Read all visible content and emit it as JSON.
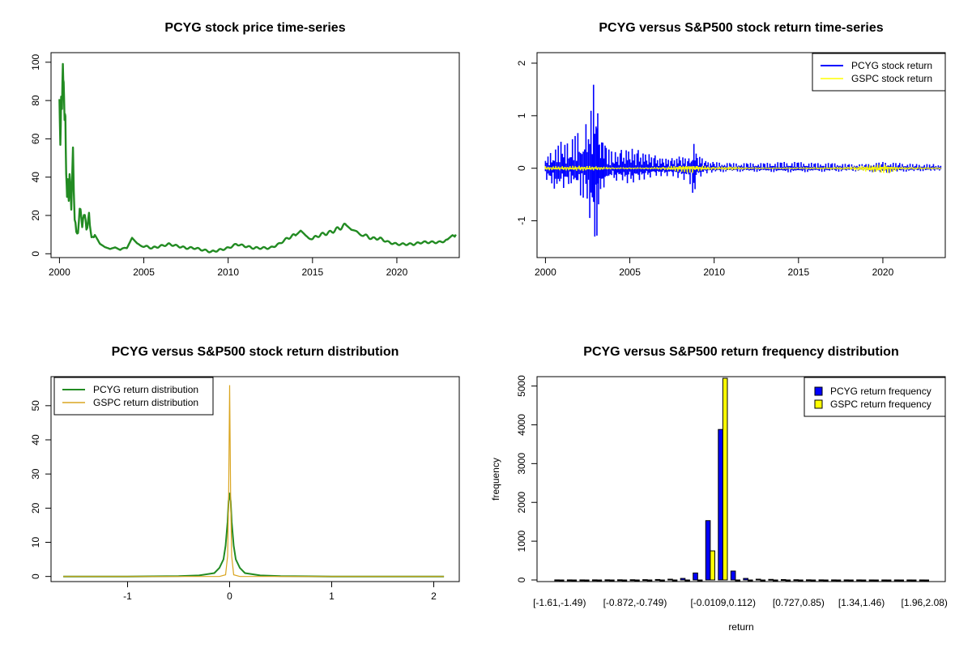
{
  "chart_data": [
    {
      "id": "p1",
      "type": "line",
      "title": "PCYG stock price time-series",
      "xlim": [
        1999.5,
        2023.7
      ],
      "ylim": [
        -2,
        105
      ],
      "x_ticks": [
        2000,
        2005,
        2010,
        2015,
        2020
      ],
      "y_ticks": [
        0,
        20,
        40,
        60,
        80,
        100
      ],
      "color": "#228B22",
      "series": [
        {
          "x": [
            2000.0,
            2000.05,
            2000.1,
            2000.15,
            2000.2,
            2000.25,
            2000.3,
            2000.35,
            2000.4,
            2000.45,
            2000.5,
            2000.55,
            2000.6,
            2000.7,
            2000.8,
            2000.9,
            2001.0,
            2001.1,
            2001.2,
            2001.35,
            2001.5,
            2001.6,
            2001.75,
            2001.9,
            2002.1,
            2002.4,
            2002.7,
            2003.0,
            2003.3,
            2003.6,
            2004.0,
            2004.3,
            2004.6,
            2005.0,
            2005.5,
            2006.0,
            2006.5,
            2007.0,
            2007.5,
            2008.0,
            2008.5,
            2009.0,
            2009.5,
            2010.0,
            2010.5,
            2011.0,
            2011.5,
            2012.0,
            2012.5,
            2013.0,
            2013.5,
            2014.0,
            2014.3,
            2014.6,
            2015.0,
            2015.5,
            2016.0,
            2016.5,
            2017.0,
            2017.3,
            2017.6,
            2018.0,
            2018.5,
            2019.0,
            2019.5,
            2020.0,
            2020.5,
            2021.0,
            2021.5,
            2022.0,
            2022.5,
            2023.0,
            2023.3,
            2023.5
          ],
          "y": [
            75,
            60,
            85,
            70,
            102,
            95,
            65,
            72,
            45,
            28,
            38,
            30,
            40,
            25,
            52,
            18,
            12,
            10,
            25,
            15,
            22,
            12,
            20,
            8,
            10,
            5,
            3,
            2,
            3,
            2,
            3,
            8,
            5,
            4,
            3,
            4,
            5,
            4,
            3,
            3,
            2,
            1,
            2,
            3,
            5,
            4,
            3,
            3,
            3,
            5,
            8,
            10,
            12,
            9,
            8,
            10,
            11,
            13,
            15,
            12,
            11,
            10,
            8,
            8,
            6,
            5,
            5,
            5,
            6,
            6,
            6,
            7,
            9,
            10
          ]
        }
      ]
    },
    {
      "id": "p2",
      "type": "line",
      "title": "PCYG versus S&P500 stock return time-series",
      "xlim": [
        1999.5,
        2023.7
      ],
      "ylim": [
        -1.7,
        2.2
      ],
      "x_ticks": [
        2000,
        2005,
        2010,
        2015,
        2020
      ],
      "y_ticks": [
        -1,
        0,
        1,
        2
      ],
      "legend": {
        "position": "top-right",
        "entries": [
          {
            "label": "PCYG stock return",
            "color": "#0000FF"
          },
          {
            "label": "GSPC stock return",
            "color": "#FFFF00"
          }
        ]
      },
      "series": [
        {
          "name": "PCYG stock return",
          "color": "#0000FF",
          "x": [
            2000.0,
            2000.3,
            2000.6,
            2001.0,
            2001.3,
            2001.6,
            2002.0,
            2002.4,
            2002.7,
            2003.0,
            2003.1,
            2003.2,
            2003.4,
            2003.6,
            2004.0,
            2004.5,
            2005.0,
            2005.5,
            2006.0,
            2006.5,
            2007.0,
            2007.5,
            2008.0,
            2008.5,
            2008.8,
            2009.0,
            2009.5,
            2010.0,
            2011.0,
            2012.0,
            2013.0,
            2014.0,
            2015.0,
            2016.0,
            2017.0,
            2018.0,
            2019.0,
            2020.0,
            2021.0,
            2022.0,
            2023.0,
            2023.5
          ],
          "hi": [
            0.25,
            0.3,
            0.4,
            0.55,
            0.5,
            0.6,
            0.7,
            0.85,
            1.3,
            2.05,
            1.8,
            0.6,
            0.5,
            0.4,
            0.3,
            0.35,
            0.4,
            0.35,
            0.3,
            0.25,
            0.2,
            0.2,
            0.25,
            0.2,
            0.5,
            0.3,
            0.15,
            0.12,
            0.1,
            0.1,
            0.1,
            0.12,
            0.12,
            0.1,
            0.1,
            0.08,
            0.08,
            0.12,
            0.1,
            0.08,
            0.08,
            0.05
          ],
          "lo": [
            -0.2,
            -0.3,
            -0.45,
            -0.4,
            -0.35,
            -0.3,
            -0.5,
            -0.6,
            -1.1,
            -1.6,
            -1.0,
            -0.5,
            -0.4,
            -0.3,
            -0.25,
            -0.25,
            -0.3,
            -0.25,
            -0.2,
            -0.15,
            -0.15,
            -0.15,
            -0.2,
            -0.25,
            -0.6,
            -0.2,
            -0.1,
            -0.08,
            -0.07,
            -0.07,
            -0.07,
            -0.08,
            -0.08,
            -0.07,
            -0.07,
            -0.06,
            -0.06,
            -0.1,
            -0.07,
            -0.06,
            -0.05,
            -0.04
          ]
        },
        {
          "name": "GSPC stock return",
          "color": "#FFFF00",
          "x": [
            2000.0,
            2001.0,
            2002.0,
            2003.0,
            2004.0,
            2005.0,
            2006.0,
            2007.0,
            2008.0,
            2008.8,
            2009.0,
            2010.0,
            2011.0,
            2012.0,
            2015.0,
            2018.0,
            2020.2,
            2021.0,
            2023.5
          ],
          "hi": [
            0.04,
            0.04,
            0.05,
            0.04,
            0.02,
            0.02,
            0.02,
            0.03,
            0.06,
            0.1,
            0.06,
            0.03,
            0.04,
            0.02,
            0.02,
            0.03,
            0.08,
            0.03,
            0.02
          ],
          "lo": [
            -0.04,
            -0.04,
            -0.05,
            -0.04,
            -0.02,
            -0.02,
            -0.02,
            -0.03,
            -0.07,
            -0.09,
            -0.06,
            -0.03,
            -0.04,
            -0.02,
            -0.02,
            -0.03,
            -0.1,
            -0.03,
            -0.02
          ]
        }
      ]
    },
    {
      "id": "p3",
      "type": "line",
      "title": "PCYG versus S&P500 stock return distribution",
      "xlim": [
        -1.75,
        2.25
      ],
      "ylim": [
        -1.5,
        58.5
      ],
      "x_ticks": [
        -1,
        0,
        1,
        2
      ],
      "y_ticks": [
        0,
        10,
        20,
        30,
        40,
        50
      ],
      "legend": {
        "position": "top-left",
        "entries": [
          {
            "label": "PCYG return distribution",
            "color": "#228B22"
          },
          {
            "label": "GSPC return distribution",
            "color": "#DAA520"
          }
        ]
      },
      "series": [
        {
          "name": "PCYG return distribution",
          "color": "#228B22",
          "x": [
            -1.63,
            -1.0,
            -0.5,
            -0.3,
            -0.15,
            -0.1,
            -0.06,
            -0.04,
            -0.02,
            -0.01,
            0.0,
            0.01,
            0.02,
            0.04,
            0.06,
            0.1,
            0.15,
            0.3,
            0.5,
            1.0,
            2.1
          ],
          "y": [
            0,
            0,
            0.1,
            0.3,
            1.0,
            2.5,
            5,
            9,
            16,
            22,
            24.5,
            22,
            16,
            9,
            5,
            2.5,
            1.0,
            0.3,
            0.1,
            0,
            0
          ]
        },
        {
          "name": "GSPC return distribution",
          "color": "#DAA520",
          "x": [
            -1.63,
            -0.1,
            -0.04,
            -0.02,
            -0.01,
            -0.005,
            0.0,
            0.005,
            0.01,
            0.02,
            0.04,
            0.1,
            2.1
          ],
          "y": [
            0,
            0,
            0.5,
            6,
            22,
            40,
            56,
            40,
            22,
            6,
            0.5,
            0,
            0
          ]
        }
      ]
    },
    {
      "id": "p4",
      "type": "bar",
      "title": "PCYG versus S&P500 return frequency distribution",
      "xlabel": "return",
      "ylabel": "frequency",
      "ylim": [
        0,
        5200
      ],
      "y_ticks": [
        0,
        1000,
        2000,
        3000,
        4000,
        5000
      ],
      "category_labels_shown": [
        {
          "index": 0,
          "label": "[-1.61,-1.49)"
        },
        {
          "index": 6,
          "label": "[-0.872,-0.749)"
        },
        {
          "index": 13,
          "label": "[-0.0109,0.112)"
        },
        {
          "index": 19,
          "label": "[0.727,0.85)"
        },
        {
          "index": 24,
          "label": "[1.34,1.46)"
        },
        {
          "index": 29,
          "label": "[1.96,2.08)"
        }
      ],
      "legend": {
        "position": "top-right",
        "entries": [
          {
            "label": "PCYG return frequency",
            "color": "#0000FF"
          },
          {
            "label": "GSPC return frequency",
            "color": "#FFFF00"
          }
        ]
      },
      "series": [
        {
          "name": "PCYG return frequency",
          "color": "#0000FF",
          "values": [
            2,
            2,
            2,
            3,
            4,
            5,
            6,
            8,
            12,
            20,
            40,
            180,
            1530,
            3880,
            230,
            40,
            20,
            15,
            10,
            6,
            4,
            3,
            2,
            2,
            2,
            1,
            1,
            1,
            1,
            1
          ]
        },
        {
          "name": "GSPC return frequency",
          "color": "#FFFF00",
          "values": [
            0,
            0,
            0,
            0,
            0,
            0,
            0,
            0,
            0,
            0,
            0,
            0,
            750,
            5200,
            0,
            0,
            0,
            0,
            0,
            0,
            0,
            0,
            0,
            0,
            0,
            0,
            0,
            0,
            0,
            0
          ]
        }
      ]
    }
  ]
}
